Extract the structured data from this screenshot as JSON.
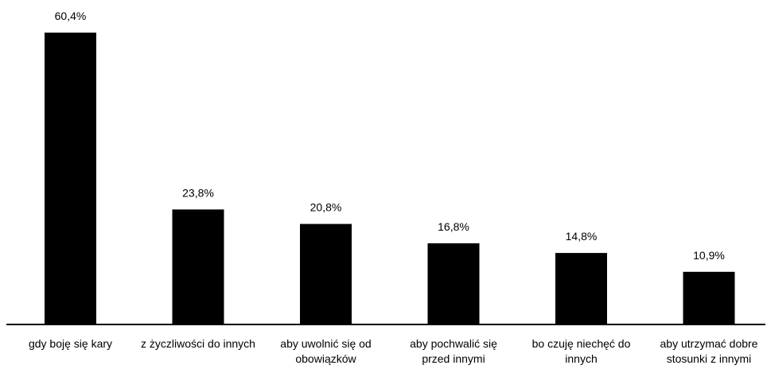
{
  "chart_data": {
    "type": "bar",
    "title": "",
    "xlabel": "",
    "ylabel": "",
    "ylim": [
      0,
      62
    ],
    "grid": false,
    "legend": "none",
    "categories": [
      [
        "gdy boję się kary"
      ],
      [
        "z życzliwości do innych"
      ],
      [
        "aby uwolnić się od",
        "obowiązków"
      ],
      [
        "aby pochwalić się",
        "przed innymi"
      ],
      [
        "bo czuję niechęć do",
        "innych"
      ],
      [
        "aby utrzymać dobre",
        "stosunki z innymi"
      ]
    ],
    "values": [
      60.4,
      23.8,
      20.8,
      16.8,
      14.8,
      10.9
    ],
    "value_labels": [
      "60,4%",
      "23,8%",
      "20,8%",
      "16,8%",
      "14,8%",
      "10,9%"
    ],
    "bar_color": "#000000"
  }
}
